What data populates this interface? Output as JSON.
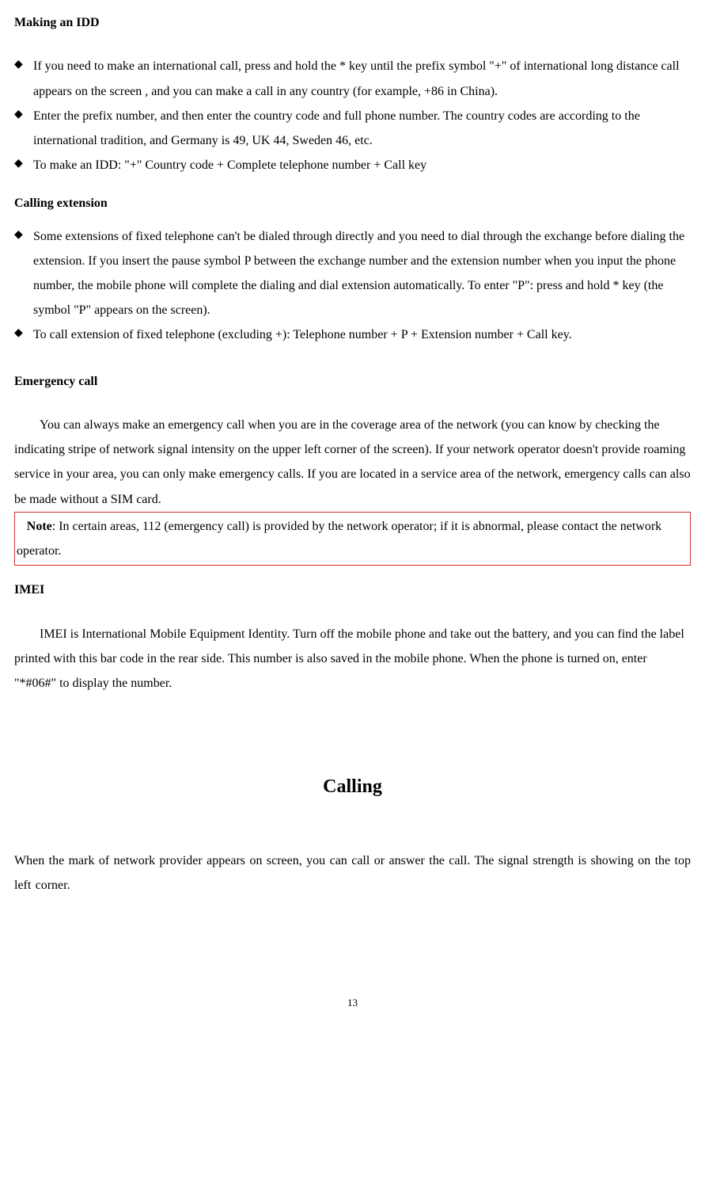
{
  "sections": {
    "idd": {
      "title": "Making an IDD",
      "items": [
        "If you need to make an international call, press and hold the * key until the prefix symbol \"+\" of international long distance call appears on the screen , and you can make a call in any country (for example, +86 in China).",
        "Enter the prefix number, and then enter the country code and full phone number. The country codes are according to the international tradition, and Germany is 49, UK 44, Sweden 46, etc.",
        "To make an IDD: \"+\" Country code + Complete telephone number + Call key"
      ]
    },
    "ext": {
      "title": "Calling extension",
      "items": [
        "Some extensions of fixed telephone can't be dialed through directly and you need to dial through the exchange before dialing the extension. If you insert the pause symbol P between the exchange number and the extension number when you input the phone number, the mobile phone will complete the dialing and dial extension automatically. To enter \"P\": press and hold * key (the symbol \"P\" appears on the screen).",
        "To call extension of fixed telephone (excluding +): Telephone number + P + Extension number + Call key."
      ]
    },
    "emergency": {
      "title": "Emergency call",
      "body": "You can always make an emergency call when you are in the coverage area of the network (you can know by checking the indicating stripe of network signal intensity on the upper left corner of the screen). If your network operator doesn't provide roaming service in your area, you can only make emergency calls. If you are located in a service area of the network, emergency calls can also be made without a SIM card.",
      "note_label": "Note",
      "note_text": ": In certain areas, 112 (emergency call) is provided by the network operator; if it is abnormal, please contact the network operator."
    },
    "imei": {
      "title": "IMEI",
      "body": "IMEI is International Mobile Equipment Identity. Turn off the mobile phone and take out the battery, and you can find the label printed with this bar code in the rear side. This number is also saved in the mobile phone. When the phone is turned on, enter \"*#06#\" to display the number."
    }
  },
  "chapter": {
    "title": "Calling",
    "body": "When the mark of network provider appears on screen, you can call or answer the call. The signal strength is showing on the top left corner."
  },
  "page_number": "13"
}
